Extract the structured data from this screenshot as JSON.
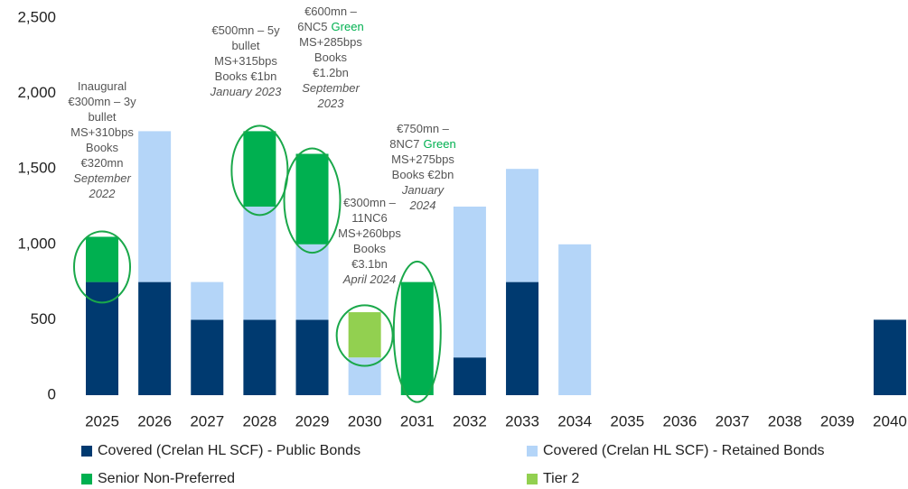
{
  "chart_data": {
    "type": "bar",
    "stacked": true,
    "categories": [
      "2025",
      "2026",
      "2027",
      "2028",
      "2029",
      "2030",
      "2031",
      "2032",
      "2033",
      "2034",
      "2035",
      "2036",
      "2037",
      "2038",
      "2039",
      "2040"
    ],
    "series": [
      {
        "name": "Covered (Crelan HL SCF) - Public Bonds",
        "color": "#003a70",
        "values": [
          750,
          750,
          500,
          500,
          500,
          0,
          0,
          250,
          750,
          0,
          0,
          0,
          0,
          0,
          0,
          500
        ]
      },
      {
        "name": "Covered (Crelan HL SCF) - Retained Bonds",
        "color": "#b4d5f8",
        "values": [
          0,
          1000,
          250,
          750,
          500,
          250,
          0,
          1000,
          750,
          1000,
          0,
          0,
          0,
          0,
          0,
          0
        ]
      },
      {
        "name": "Senior Non-Preferred",
        "color": "#00b050",
        "values": [
          300,
          0,
          0,
          500,
          600,
          0,
          750,
          0,
          0,
          0,
          0,
          0,
          0,
          0,
          0,
          0
        ]
      },
      {
        "name": "Tier 2",
        "color": "#92d050",
        "values": [
          0,
          0,
          0,
          0,
          0,
          300,
          0,
          0,
          0,
          0,
          0,
          0,
          0,
          0,
          0,
          0
        ]
      }
    ],
    "ylim": [
      0,
      2500
    ],
    "yticks": [
      0,
      500,
      {
        "value": 1000,
        "label": "1,000"
      },
      {
        "value": 1500,
        "label": "1,500"
      },
      {
        "value": 2000,
        "label": "2,000"
      },
      {
        "value": 2500,
        "label": "2,500"
      }
    ],
    "grid": false,
    "annotations": [
      {
        "lines": [
          [
            {
              "text": "Inaugural"
            }
          ],
          [
            {
              "text": "€300mn – 3y"
            }
          ],
          [
            {
              "text": "bullet"
            }
          ],
          [
            {
              "text": "MS+310bps"
            }
          ],
          [
            {
              "text": "Books"
            }
          ],
          [
            {
              "text": "€320mn"
            }
          ],
          [
            {
              "text": "September",
              "italic": true
            }
          ],
          [
            {
              "text": "2022",
              "italic": true
            }
          ]
        ]
      },
      {
        "lines": [
          [
            {
              "text": "€500mn – 5y"
            }
          ],
          [
            {
              "text": "bullet"
            }
          ],
          [
            {
              "text": "MS+315bps"
            }
          ],
          [
            {
              "text": "Books €1bn"
            }
          ],
          [
            {
              "text": "January 2023",
              "italic": true
            }
          ]
        ]
      },
      {
        "lines": [
          [
            {
              "text": "€600mn –"
            }
          ],
          [
            {
              "text": "6NC5"
            },
            {
              "text": "Green",
              "color": "#00b050"
            }
          ],
          [
            {
              "text": "MS+285bps"
            }
          ],
          [
            {
              "text": "Books"
            }
          ],
          [
            {
              "text": "€1.2bn"
            }
          ],
          [
            {
              "text": "September",
              "italic": true
            }
          ],
          [
            {
              "text": "2023",
              "italic": true
            }
          ]
        ]
      },
      {
        "lines": [
          [
            {
              "text": "€300mn –"
            }
          ],
          [
            {
              "text": "11NC6"
            }
          ],
          [
            {
              "text": "MS+260bps"
            }
          ],
          [
            {
              "text": "Books"
            }
          ],
          [
            {
              "text": "€3.1bn"
            }
          ],
          [
            {
              "text": "April 2024",
              "italic": true
            }
          ]
        ]
      },
      {
        "lines": [
          [
            {
              "text": "€750mn –"
            }
          ],
          [
            {
              "text": "8NC7"
            },
            {
              "text": "Green",
              "color": "#00b050"
            }
          ],
          [
            {
              "text": "MS+275bps"
            }
          ],
          [
            {
              "text": "Books €2bn"
            }
          ],
          [
            {
              "text": "January",
              "italic": true
            }
          ],
          [
            {
              "text": "2024",
              "italic": true
            }
          ]
        ]
      }
    ]
  }
}
